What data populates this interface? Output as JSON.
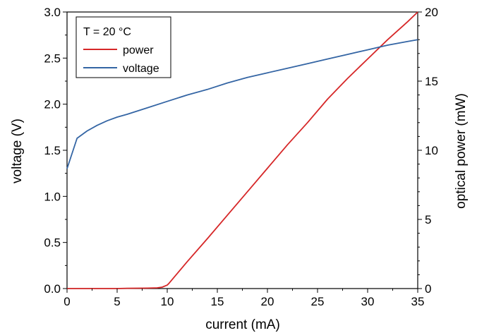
{
  "chart_data": {
    "type": "line",
    "xlabel": "current (mA)",
    "ylabel_left": "voltage (V)",
    "ylabel_right": "optical power (mW)",
    "xlim": [
      0,
      35
    ],
    "ylim_left": [
      0,
      3.0
    ],
    "ylim_right": [
      0,
      20
    ],
    "x_ticks": [
      0,
      5,
      10,
      15,
      20,
      25,
      30,
      35
    ],
    "y_left_ticks": [
      "0.0",
      "0.5",
      "1.0",
      "1.5",
      "2.0",
      "2.5",
      "3.0"
    ],
    "y_right_ticks": [
      "0",
      "5",
      "10",
      "15",
      "20"
    ],
    "grid": false,
    "legend_position": "top-left",
    "legend_title": "T = 20 °C",
    "series": [
      {
        "name": "power",
        "axis": "right",
        "color": "#d62728",
        "x": [
          0,
          5,
          6,
          8,
          9,
          9.5,
          10,
          10.2,
          12,
          14,
          16,
          18,
          20,
          22,
          24,
          26,
          28,
          30,
          32,
          34,
          35
        ],
        "y": [
          0,
          0,
          0.02,
          0.03,
          0.05,
          0.1,
          0.25,
          0.4,
          1.95,
          3.6,
          5.3,
          7.0,
          8.7,
          10.4,
          12.0,
          13.7,
          15.2,
          16.6,
          18.0,
          19.3,
          20.0
        ]
      },
      {
        "name": "voltage",
        "axis": "left",
        "color": "#3465a4",
        "x": [
          0,
          1,
          2,
          3,
          4,
          5,
          6,
          8,
          10,
          12,
          14,
          16,
          18,
          20,
          22,
          24,
          26,
          28,
          30,
          32,
          34,
          35
        ],
        "y": [
          1.3,
          1.63,
          1.71,
          1.77,
          1.82,
          1.86,
          1.89,
          1.96,
          2.03,
          2.1,
          2.16,
          2.23,
          2.29,
          2.34,
          2.39,
          2.44,
          2.49,
          2.54,
          2.59,
          2.64,
          2.68,
          2.7
        ]
      }
    ]
  }
}
